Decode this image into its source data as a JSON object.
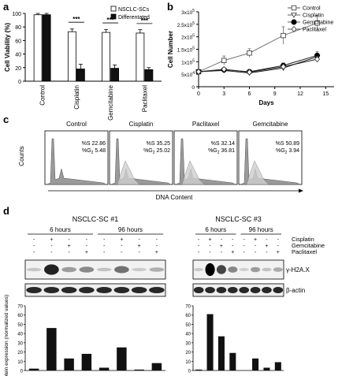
{
  "panel_labels": {
    "a": "a",
    "b": "b",
    "c": "c",
    "d": "d"
  },
  "colors": {
    "white_bar": "#ffffff",
    "black_bar": "#111111",
    "grey_hist": "#9a9a9a",
    "light_hist": "#cfcfcf"
  },
  "chart_data": [
    {
      "id": "a",
      "type": "bar",
      "ylabel": "Cell Viability (%)",
      "ylim": [
        0,
        100
      ],
      "yticks": [
        "0",
        "20",
        "40",
        "60",
        "80",
        "100"
      ],
      "categories": [
        "Control",
        "Cisplatin",
        "Gemcitabine",
        "Paclitaxel"
      ],
      "series": [
        {
          "name": "NSCLC-SCs",
          "values": [
            98,
            73,
            72,
            71
          ],
          "errors": [
            2,
            4,
            4,
            5
          ]
        },
        {
          "name": "Differentated",
          "values": [
            98,
            18,
            19,
            17
          ],
          "errors": [
            2,
            7,
            5,
            3
          ]
        }
      ],
      "significance": [
        "***",
        "***",
        "***"
      ],
      "legend_position": "top-right",
      "grid": false
    },
    {
      "id": "b",
      "type": "line",
      "xlabel": "Days",
      "ylabel": "Cell Number",
      "xlim": [
        0,
        16
      ],
      "xticks": [
        "0",
        "3",
        "6",
        "9",
        "12",
        "15"
      ],
      "ylim": [
        0,
        300000
      ],
      "ytick_base": [
        "0",
        "5x10",
        "1x10",
        "1.5x10",
        "2x10",
        "2.5x10",
        "3x10"
      ],
      "ytick_exp": [
        "",
        "4",
        "5",
        "5",
        "5",
        "5",
        "5"
      ],
      "x": [
        0,
        3,
        6,
        10,
        14
      ],
      "series": [
        {
          "name": "Control",
          "marker": "square",
          "values": [
            60000,
            105000,
            135000,
            205000,
            255000
          ],
          "errors": [
            5000,
            18000,
            17000,
            35000,
            30000
          ]
        },
        {
          "name": "Cisplatin",
          "marker": "triangle-down",
          "values": [
            60000,
            65000,
            55000,
            75000,
            120000
          ],
          "errors": [
            5000,
            8000,
            8000,
            10000,
            15000
          ]
        },
        {
          "name": "Gemcitabine",
          "marker": "circle",
          "values": [
            60000,
            68000,
            60000,
            85000,
            125000
          ],
          "errors": [
            5000,
            6000,
            7000,
            10000,
            15000
          ]
        },
        {
          "name": "Paclitaxel",
          "marker": "diamond",
          "values": [
            60000,
            70000,
            58000,
            80000,
            110000
          ],
          "errors": [
            5000,
            6000,
            6000,
            9000,
            12000
          ]
        }
      ],
      "legend_position": "top-left",
      "grid": false
    },
    {
      "id": "c",
      "type": "histogram",
      "xlabel": "DNA Content",
      "ylabel": "Counts",
      "panels": [
        {
          "title": "Control",
          "S": "%S 22.86",
          "G2": "%G",
          "G2_sub": "2",
          "G2_val": "5.48"
        },
        {
          "title": "Cisplatin",
          "S": "%S 35.25",
          "G2": "%G",
          "G2_sub": "2",
          "G2_val": "25.02"
        },
        {
          "title": "Paclitaxel",
          "S": "%S 32.14",
          "G2": "%G",
          "G2_sub": "2",
          "G2_val": "36.81"
        },
        {
          "title": "Gemcitabine",
          "S": "%S 50.89",
          "G2": "%G",
          "G2_sub": "2",
          "G2_val": "3.94"
        }
      ]
    },
    {
      "id": "d",
      "type": "bar",
      "ylabel": "Protein expression (normalized values)",
      "blots": [
        {
          "title": "NSCLC-SC #1",
          "time_labels": [
            "6 hours",
            "96 hours"
          ],
          "values": [
            2,
            46,
            13,
            18,
            3,
            25,
            1,
            8
          ]
        },
        {
          "title": "NSCLC-SC #3",
          "time_labels": [
            "6 hours",
            "96 hours"
          ],
          "values": [
            1,
            61,
            37,
            19,
            0,
            13,
            3,
            9
          ]
        }
      ],
      "ylim": [
        0,
        70
      ],
      "yticks": [
        "0",
        "10",
        "20",
        "30",
        "40",
        "50",
        "60",
        "70"
      ],
      "treatment_rows": [
        {
          "label": "Cisplatin",
          "marks": [
            "-",
            "+",
            "-",
            "-",
            "-",
            "+",
            "-",
            "-"
          ]
        },
        {
          "label": "Gemcitabine",
          "marks": [
            "-",
            "-",
            "+",
            "-",
            "-",
            "-",
            "+",
            "-"
          ]
        },
        {
          "label": "Paclitaxel",
          "marks": [
            "-",
            "-",
            "-",
            "+",
            "-",
            "-",
            "-",
            "+"
          ]
        }
      ],
      "band_labels": [
        "γ-H2A.X",
        "β-actin"
      ]
    }
  ]
}
